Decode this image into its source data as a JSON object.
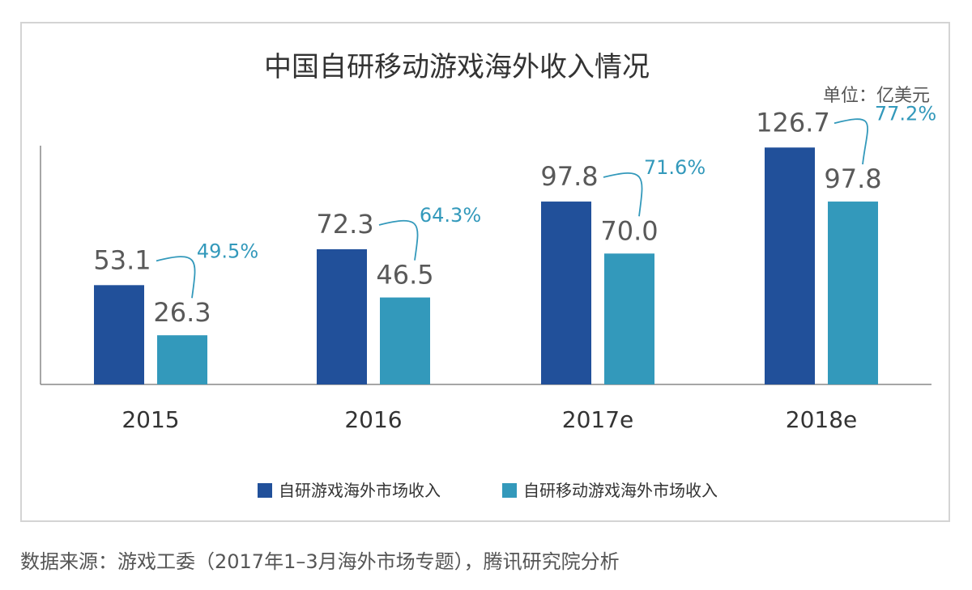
{
  "chart_data": {
    "type": "bar",
    "title": "中国自研移动游戏海外收入情况",
    "unit_label": "单位：亿美元",
    "categories": [
      "2015",
      "2016",
      "2017e",
      "2018e"
    ],
    "series": [
      {
        "name": "自研游戏海外市场收入",
        "values": [
          53.1,
          72.3,
          97.8,
          126.7
        ],
        "labels": [
          "53.1",
          "72.3",
          "97.8",
          "126.7"
        ]
      },
      {
        "name": "自研移动游戏海外市场收入",
        "values": [
          26.3,
          46.5,
          70.0,
          97.8
        ],
        "labels": [
          "26.3",
          "46.5",
          "70.0",
          "97.8"
        ]
      }
    ],
    "ratios": [
      "49.5%",
      "64.3%",
      "71.6%",
      "77.2%"
    ],
    "ylim": [
      0,
      145
    ],
    "grid": false,
    "legend": "bottom",
    "colors": {
      "series1": "#21509a",
      "series2": "#3399bb",
      "ratio": "#3399bb",
      "axis": "#888888",
      "value_label": "#595959"
    }
  },
  "source": "数据来源：游戏工委（2017年1–3月海外市场专题），腾讯研究院分析"
}
